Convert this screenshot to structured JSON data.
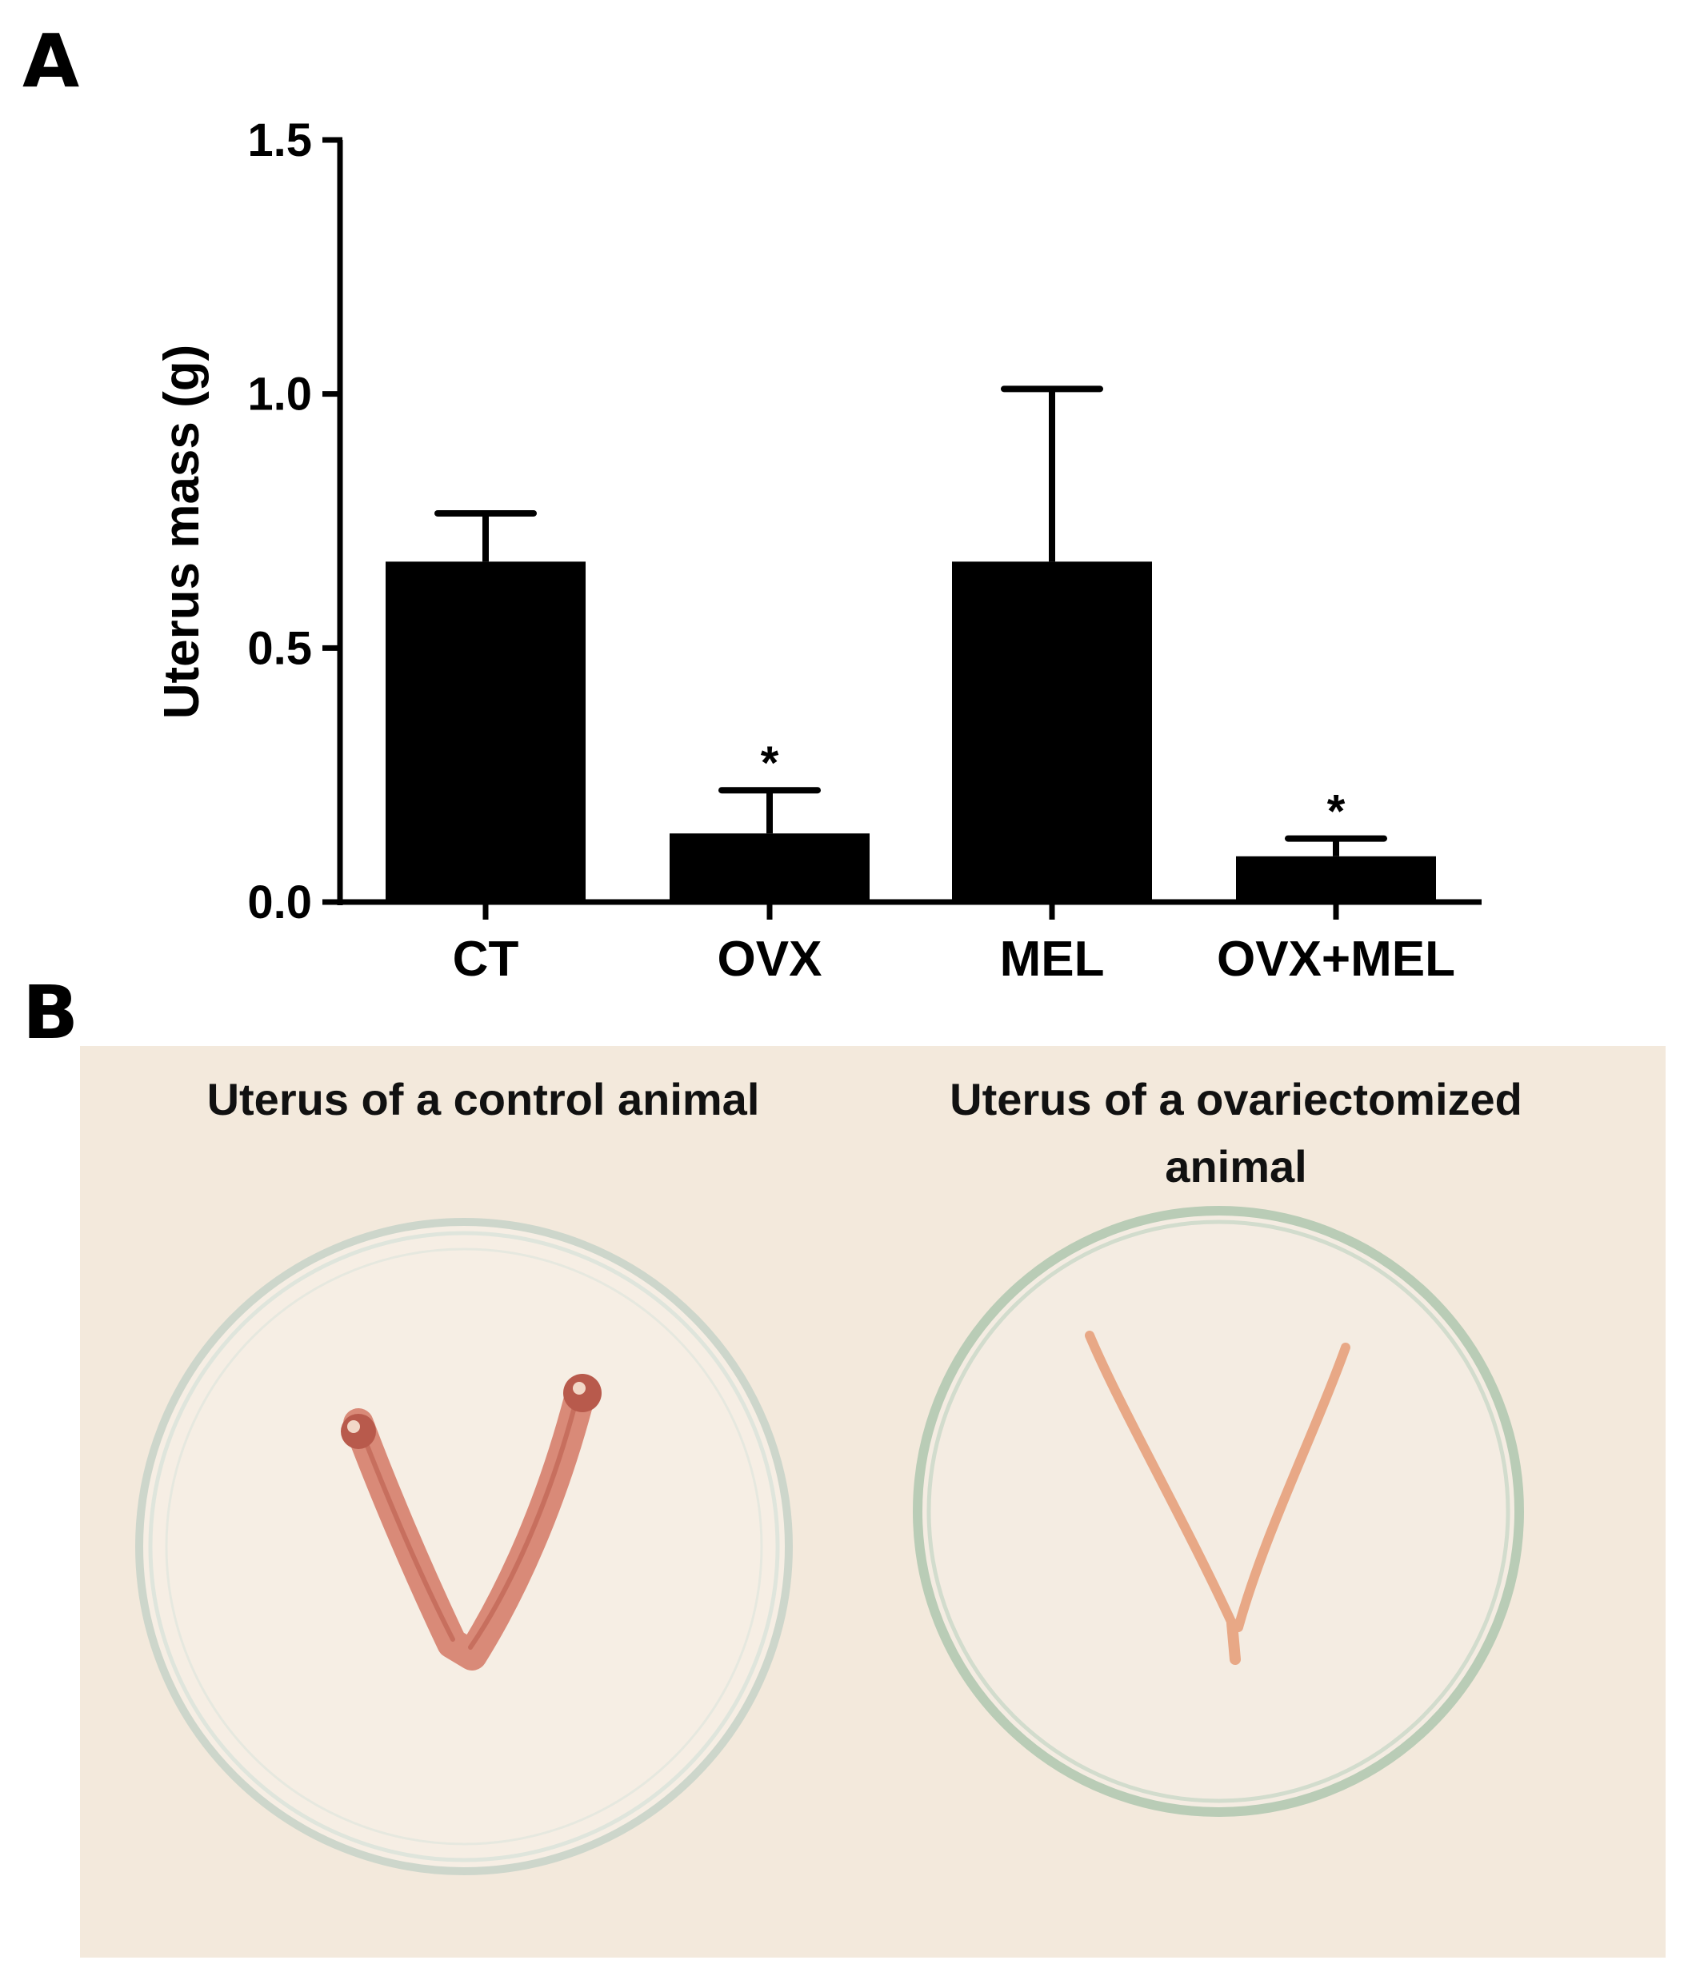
{
  "panels": {
    "a_label": "A",
    "b_label": "B"
  },
  "chart_data": {
    "type": "bar",
    "title": "",
    "xlabel": "",
    "ylabel": "Uterus mass (g)",
    "ylim": [
      0,
      1.5
    ],
    "yticks": [
      "0.0",
      "0.5",
      "1.0",
      "1.5"
    ],
    "categories": [
      "CT",
      "OVX",
      "MEL",
      "OVX+MEL"
    ],
    "values": [
      0.67,
      0.135,
      0.67,
      0.09
    ],
    "errors": [
      0.095,
      0.085,
      0.34,
      0.035
    ],
    "significance": [
      "",
      "*",
      "",
      "*"
    ],
    "bar_color": "#000000",
    "grid": false
  },
  "photo": {
    "background_color": "#f3e9dc",
    "dish_color": "#c9d6c6",
    "tissue_color": "#d98a78",
    "tissue_color_light": "#e8a886",
    "caption_left": "Uterus of a control animal",
    "caption_right_line1": "Uterus of a ovariectomized",
    "caption_right_line2": "animal"
  }
}
